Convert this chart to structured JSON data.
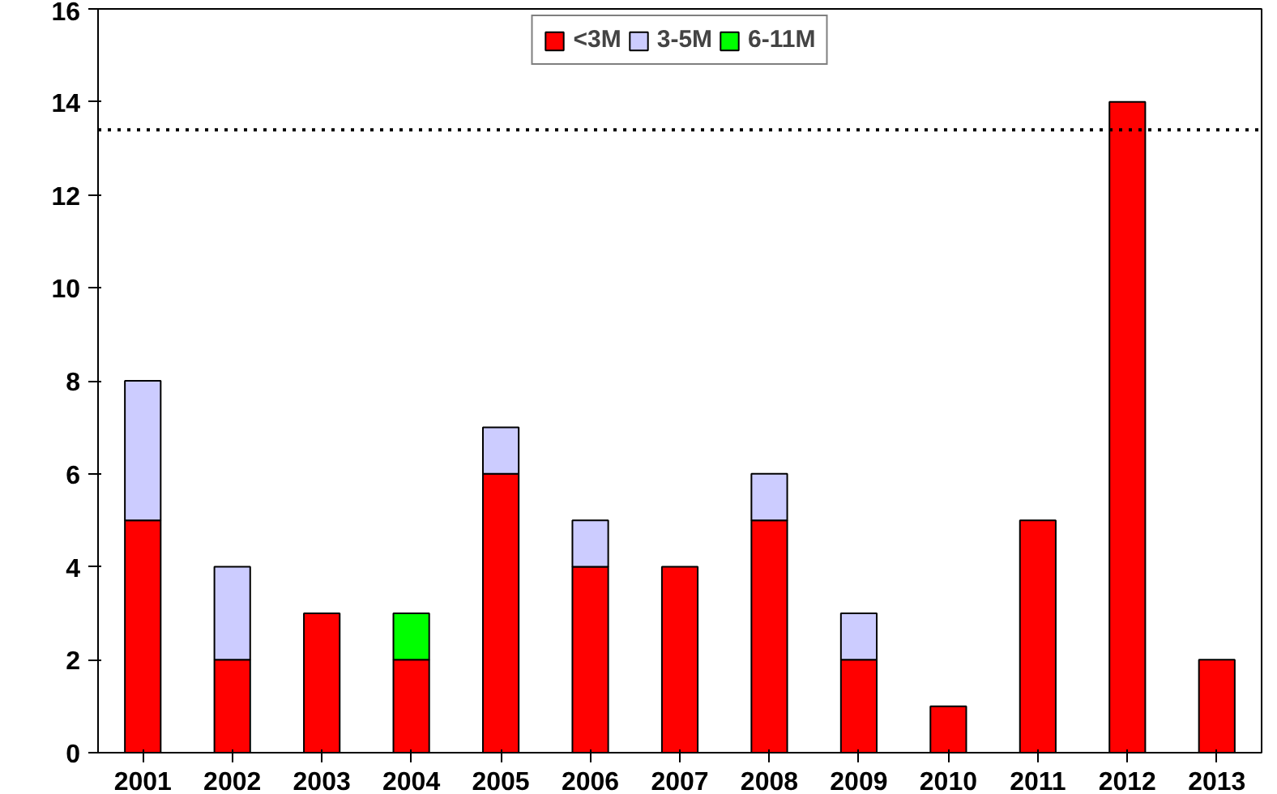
{
  "chart_data": {
    "type": "bar",
    "stacked": true,
    "categories": [
      "2001",
      "2002",
      "2003",
      "2004",
      "2005",
      "2006",
      "2007",
      "2008",
      "2009",
      "2010",
      "2011",
      "2012",
      "2013"
    ],
    "series": [
      {
        "name": "<3M",
        "color": "#ff0000",
        "values": [
          5,
          2,
          3,
          2,
          6,
          4,
          4,
          5,
          2,
          1,
          5,
          14,
          2
        ]
      },
      {
        "name": "3-5M",
        "color": "#ccccff",
        "values": [
          3,
          2,
          0,
          0,
          1,
          1,
          0,
          1,
          1,
          0,
          0,
          0,
          0
        ]
      },
      {
        "name": "6-11M",
        "color": "#00ff00",
        "values": [
          0,
          0,
          0,
          1,
          0,
          0,
          0,
          0,
          0,
          0,
          0,
          0,
          0
        ]
      }
    ],
    "ylim": [
      0,
      16
    ],
    "yticks": [
      0,
      2,
      4,
      6,
      8,
      10,
      12,
      14,
      16
    ],
    "grid": false,
    "legend": "top",
    "ref_lines": [
      {
        "axis": "y",
        "value": 13.4,
        "line_style": "dotted",
        "color": "#000000"
      }
    ]
  }
}
